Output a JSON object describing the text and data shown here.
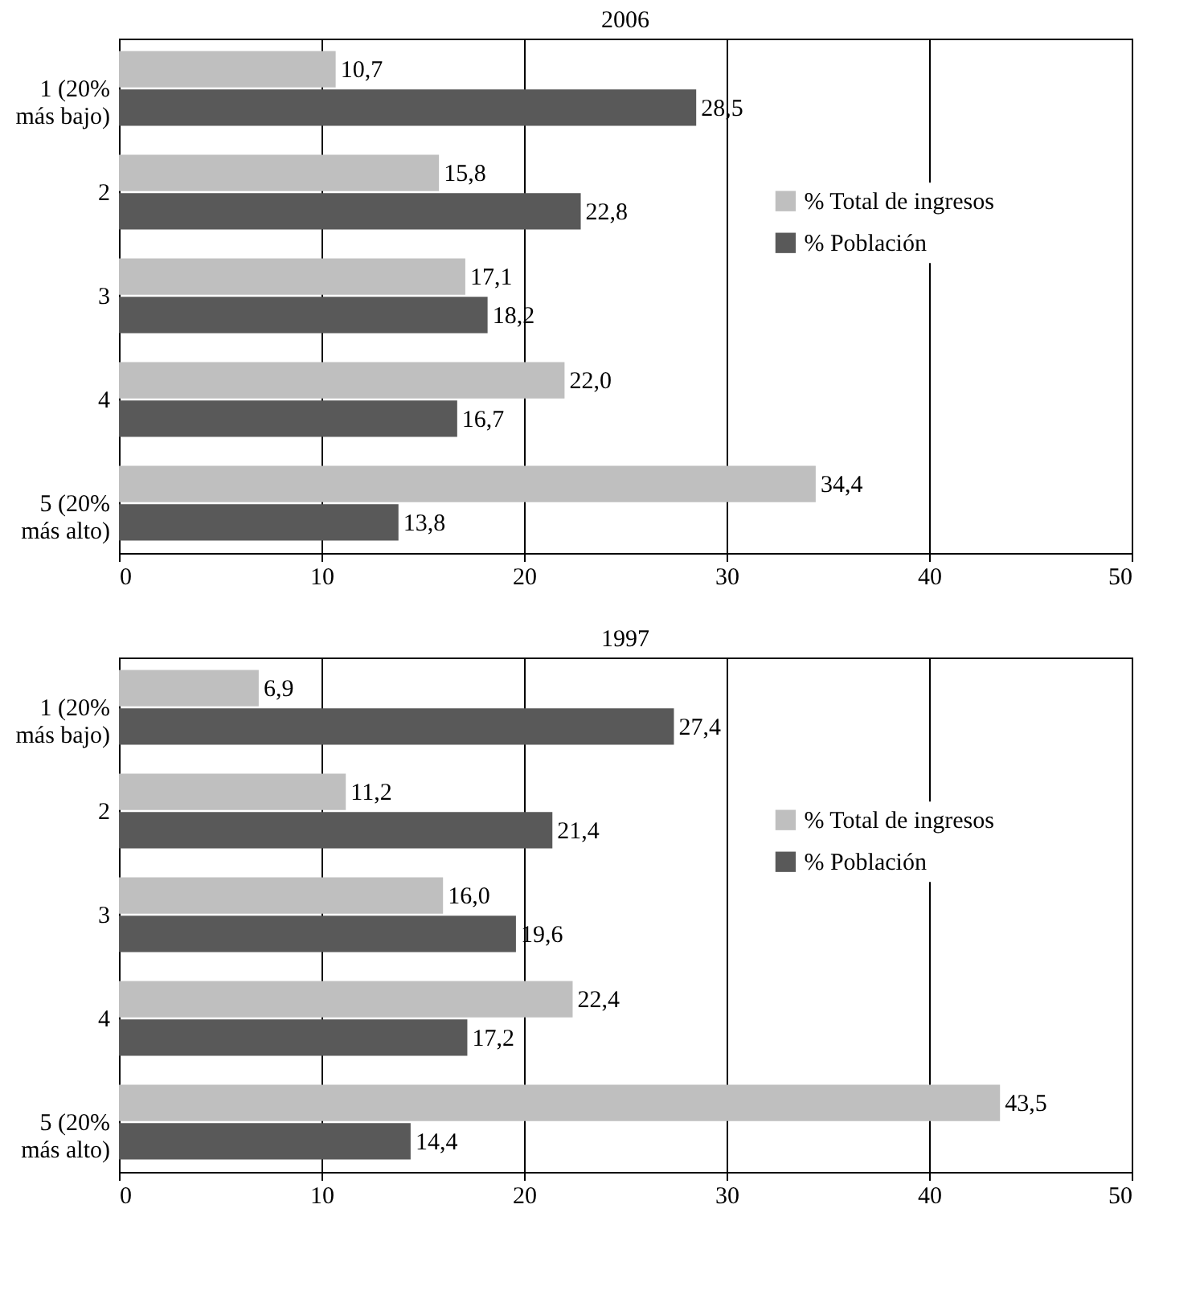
{
  "chart_data": [
    {
      "type": "bar",
      "orientation": "horizontal",
      "title": "2006",
      "categories": [
        "1 (20%\nmás bajo)",
        "2",
        "3",
        "4",
        "5 (20%\nmás alto)"
      ],
      "series": [
        {
          "name": "% Total de ingresos",
          "color": "#bfbfbf",
          "values": [
            10.7,
            15.8,
            17.1,
            22.0,
            34.4
          ],
          "value_labels": [
            "10,7",
            "15,8",
            "17,1",
            "22,0",
            "34,4"
          ]
        },
        {
          "name": "% Población",
          "color": "#595959",
          "values": [
            28.5,
            22.8,
            18.2,
            16.7,
            13.8
          ],
          "value_labels": [
            "28,5",
            "22,8",
            "18,2",
            "16,7",
            "13,8"
          ]
        }
      ],
      "xlim": [
        0,
        50
      ],
      "xticks": [
        0,
        10,
        20,
        30,
        40,
        50
      ],
      "grid": "x",
      "legend": "right"
    },
    {
      "type": "bar",
      "orientation": "horizontal",
      "title": "1997",
      "categories": [
        "1 (20%\nmás bajo)",
        "2",
        "3",
        "4",
        "5 (20%\nmás alto)"
      ],
      "series": [
        {
          "name": "% Total de ingresos",
          "color": "#bfbfbf",
          "values": [
            6.9,
            11.2,
            16.0,
            22.4,
            43.5
          ],
          "value_labels": [
            "6,9",
            "11,2",
            "16,0",
            "22,4",
            "43,5"
          ]
        },
        {
          "name": "% Población",
          "color": "#595959",
          "values": [
            27.4,
            21.4,
            19.6,
            17.2,
            14.4
          ],
          "value_labels": [
            "27,4",
            "21,4",
            "19,6",
            "17,2",
            "14,4"
          ]
        }
      ],
      "xlim": [
        0,
        50
      ],
      "xticks": [
        0,
        10,
        20,
        30,
        40,
        50
      ],
      "grid": "x",
      "legend": "right"
    }
  ]
}
